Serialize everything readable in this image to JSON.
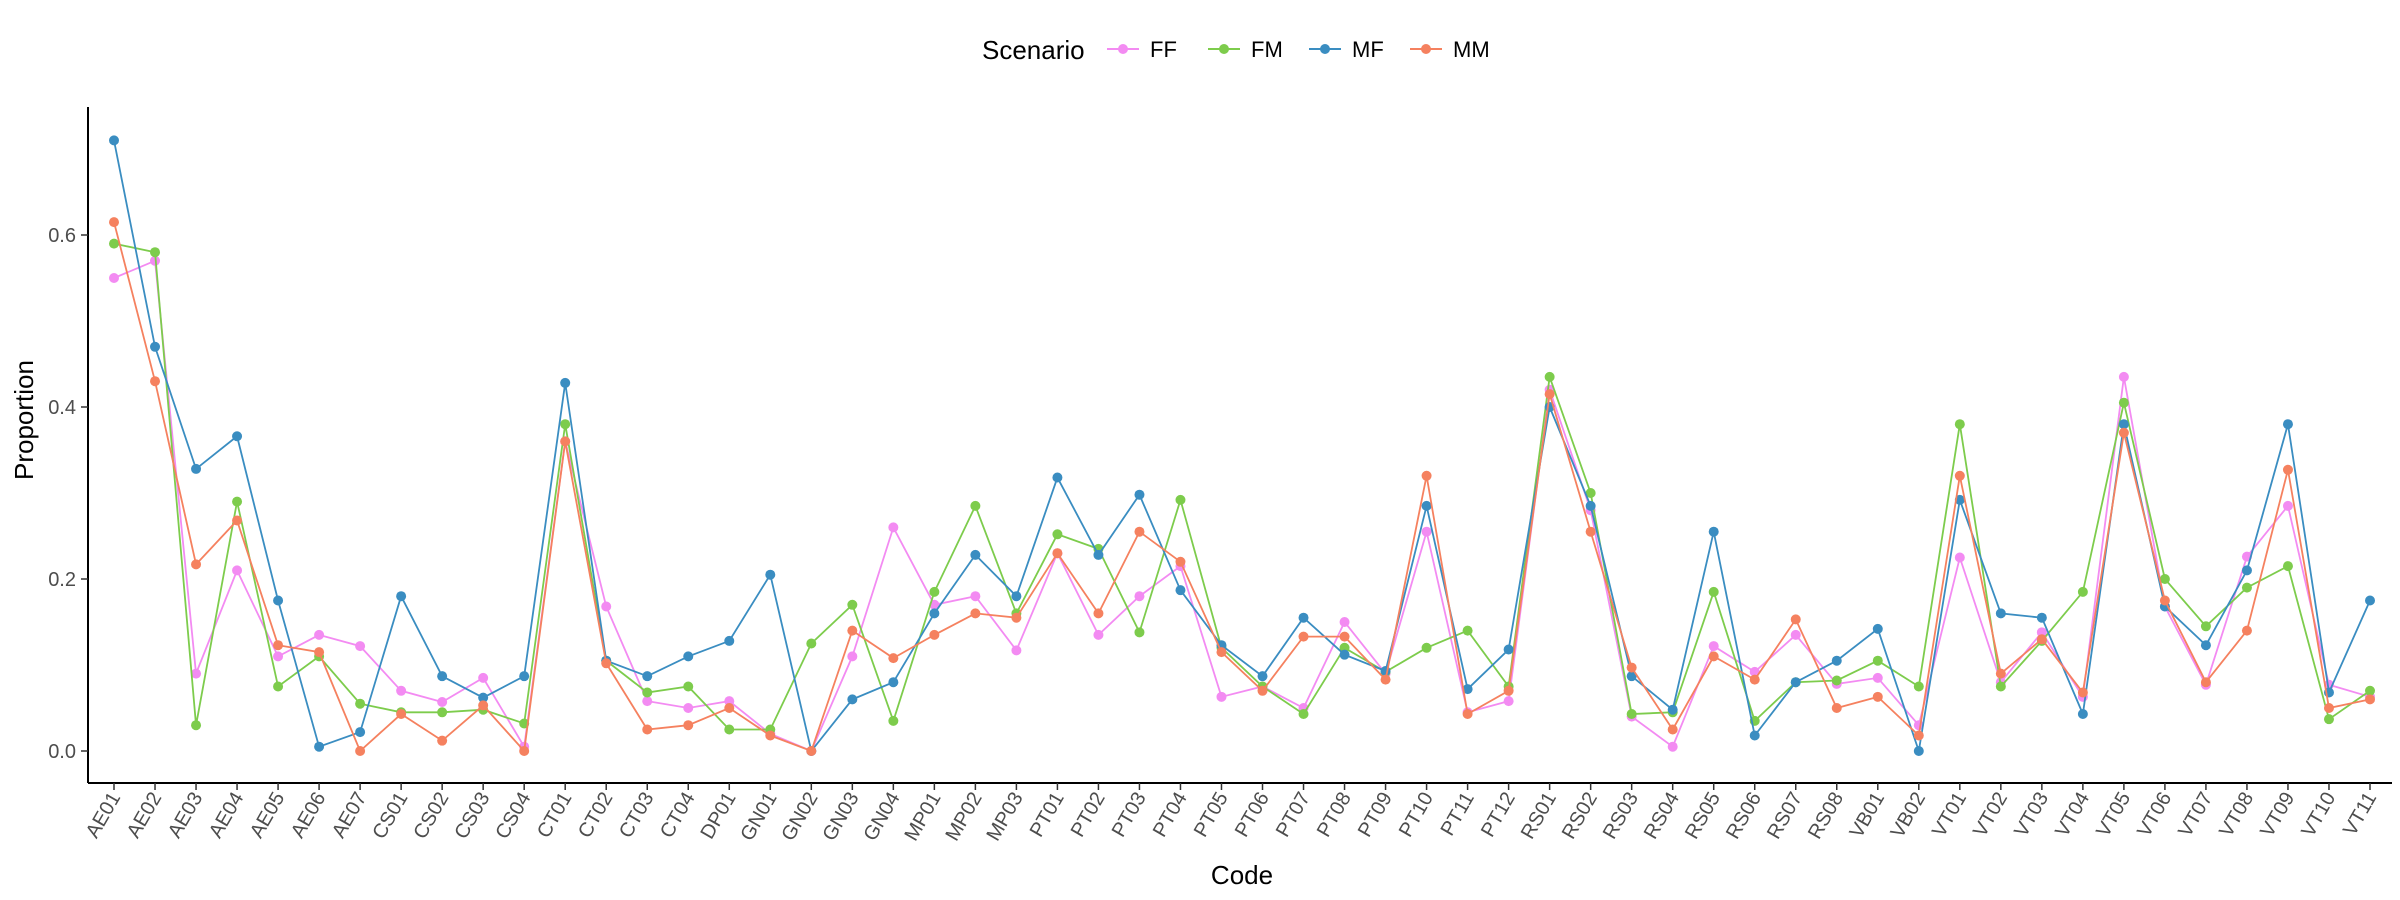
{
  "chart_data": {
    "type": "line",
    "xlabel": "Code",
    "ylabel": "Proportion",
    "ylim": [
      -0.035,
      0.74
    ],
    "yticks": [
      "0.0",
      "0.2",
      "0.4",
      "0.6"
    ],
    "yticks_values": [
      0,
      0.2,
      0.4,
      0.6
    ],
    "grid": false,
    "legend": {
      "title": "Scenario",
      "placement": "top"
    },
    "categories": [
      "AE01",
      "AE02",
      "AE03",
      "AE04",
      "AE05",
      "AE06",
      "AE07",
      "CS01",
      "CS02",
      "CS03",
      "CS04",
      "CT01",
      "CT02",
      "CT03",
      "CT04",
      "DP01",
      "GN01",
      "GN02",
      "GN03",
      "GN04",
      "MP01",
      "MP02",
      "MP03",
      "PT01",
      "PT02",
      "PT03",
      "PT04",
      "PT05",
      "PT06",
      "PT07",
      "PT08",
      "PT09",
      "PT10",
      "PT11",
      "PT12",
      "RS01",
      "RS02",
      "RS03",
      "RS04",
      "RS05",
      "RS06",
      "RS07",
      "RS08",
      "VB01",
      "VB02",
      "VT01",
      "VT02",
      "VT03",
      "VT04",
      "VT05",
      "VT06",
      "VT07",
      "VT08",
      "VT09",
      "VT10",
      "VT11"
    ],
    "series": [
      {
        "name": "FF",
        "color": "#f38bf2",
        "values": [
          0.55,
          0.57,
          0.09,
          0.21,
          0.11,
          0.135,
          0.122,
          0.07,
          0.057,
          0.085,
          0.005,
          0.36,
          0.168,
          0.058,
          0.05,
          0.058,
          0.02,
          0.0,
          0.11,
          0.26,
          0.17,
          0.18,
          0.117,
          0.23,
          0.135,
          0.18,
          0.215,
          0.063,
          0.075,
          0.05,
          0.15,
          0.09,
          0.255,
          0.045,
          0.058,
          0.42,
          0.28,
          0.04,
          0.005,
          0.122,
          0.092,
          0.135,
          0.078,
          0.085,
          0.03,
          0.225,
          0.08,
          0.138,
          0.063,
          0.435,
          0.168,
          0.077,
          0.226,
          0.285,
          0.077,
          0.063
        ]
      },
      {
        "name": "FM",
        "color": "#7dcc4c",
        "values": [
          0.59,
          0.58,
          0.03,
          0.29,
          0.075,
          0.11,
          0.055,
          0.045,
          0.045,
          0.048,
          0.032,
          0.38,
          0.105,
          0.068,
          0.075,
          0.025,
          0.025,
          0.125,
          0.17,
          0.035,
          0.185,
          0.285,
          0.16,
          0.252,
          0.235,
          0.138,
          0.292,
          0.12,
          0.075,
          0.043,
          0.12,
          0.092,
          0.12,
          0.14,
          0.075,
          0.435,
          0.3,
          0.043,
          0.045,
          0.185,
          0.035,
          0.08,
          0.082,
          0.105,
          0.075,
          0.38,
          0.075,
          0.128,
          0.185,
          0.405,
          0.2,
          0.145,
          0.19,
          0.215,
          0.037,
          0.07
        ]
      },
      {
        "name": "MF",
        "color": "#3a8dc1",
        "values": [
          0.71,
          0.47,
          0.328,
          0.366,
          0.175,
          0.005,
          0.022,
          0.18,
          0.087,
          0.062,
          0.087,
          0.428,
          0.105,
          0.087,
          0.11,
          0.128,
          0.205,
          0.0,
          0.06,
          0.08,
          0.16,
          0.228,
          0.18,
          0.318,
          0.228,
          0.298,
          0.187,
          0.123,
          0.087,
          0.155,
          0.112,
          0.093,
          0.285,
          0.072,
          0.118,
          0.4,
          0.285,
          0.087,
          0.048,
          0.255,
          0.018,
          0.08,
          0.105,
          0.142,
          0.0,
          0.292,
          0.16,
          0.155,
          0.043,
          0.38,
          0.168,
          0.123,
          0.21,
          0.38,
          0.068,
          0.175
        ]
      },
      {
        "name": "MM",
        "color": "#f5815f",
        "values": [
          0.615,
          0.43,
          0.217,
          0.268,
          0.123,
          0.115,
          0.0,
          0.043,
          0.012,
          0.053,
          0.0,
          0.36,
          0.102,
          0.025,
          0.03,
          0.05,
          0.018,
          0.0,
          0.14,
          0.108,
          0.135,
          0.16,
          0.155,
          0.23,
          0.16,
          0.255,
          0.22,
          0.115,
          0.07,
          0.133,
          0.133,
          0.083,
          0.32,
          0.043,
          0.07,
          0.415,
          0.255,
          0.097,
          0.025,
          0.11,
          0.083,
          0.153,
          0.05,
          0.063,
          0.018,
          0.32,
          0.09,
          0.13,
          0.068,
          0.37,
          0.175,
          0.08,
          0.14,
          0.327,
          0.05,
          0.06
        ]
      }
    ]
  }
}
